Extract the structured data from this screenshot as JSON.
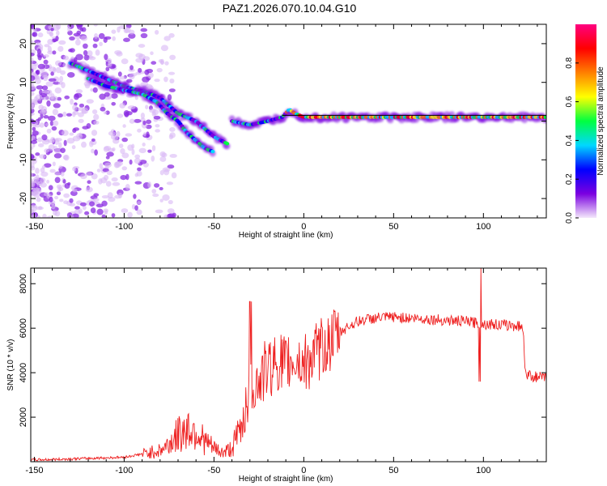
{
  "title": "PAZ1.2026.070.10.04.G10",
  "chart_data": [
    {
      "type": "heatmap",
      "xlabel": "Height of straight line (km)",
      "ylabel": "Frequency (Hz)",
      "xlim": [
        -152,
        135
      ],
      "ylim": [
        -25,
        25
      ],
      "xticks": [
        -150,
        -100,
        -50,
        0,
        50,
        100
      ],
      "yticks": [
        -20,
        -10,
        0,
        10,
        20
      ],
      "colorbar": {
        "label": "Normalized spectral amplitude",
        "ticks": [
          0.0,
          0.2,
          0.4,
          0.6,
          0.8
        ],
        "range": [
          0,
          1
        ],
        "colors": [
          "#f4e8fb",
          "#7a00e0",
          "#0000ff",
          "#00d8ff",
          "#00ff40",
          "#ffff00",
          "#ff8000",
          "#ff0000",
          "#ff0080"
        ]
      },
      "series": [
        {
          "x": [
            -130,
            -120,
            -110,
            -100,
            -92,
            -85,
            -80,
            -75,
            -70,
            -65,
            -60,
            -55,
            -50,
            -46,
            -42
          ],
          "y": [
            15,
            13,
            11,
            9,
            8,
            7,
            6,
            4,
            2,
            1,
            0,
            -2,
            -4,
            -5,
            -6
          ]
        },
        {
          "x": [
            -120,
            -110,
            -100,
            -90,
            -82,
            -76,
            -70,
            -65,
            -60,
            -55,
            -50
          ],
          "y": [
            11,
            9,
            8,
            7,
            5,
            2,
            0,
            -3,
            -5,
            -7,
            -8
          ]
        },
        {
          "x": [
            -40,
            -30,
            -20,
            -12,
            -8,
            -5,
            0,
            10,
            20,
            40,
            60,
            80,
            100,
            120,
            135
          ],
          "y": [
            0,
            -1,
            0,
            1,
            3,
            2,
            1,
            1,
            1,
            1,
            1,
            1,
            1,
            1,
            1
          ]
        }
      ],
      "baseline_y": 1.5
    },
    {
      "type": "line",
      "xlabel": "Height of straight line (km)",
      "ylabel": "SNR (10 * v/v)",
      "xlim": [
        -152,
        135
      ],
      "ylim": [
        0,
        8700
      ],
      "xticks": [
        -150,
        -100,
        -50,
        0,
        50,
        100
      ],
      "yticks": [
        2000,
        4000,
        6000,
        8000
      ],
      "color": "#ee2020",
      "x": [
        -152,
        -140,
        -120,
        -100,
        -90,
        -80,
        -75,
        -70,
        -65,
        -60,
        -55,
        -50,
        -45,
        -40,
        -35,
        -32,
        -30,
        -28,
        -25,
        -22,
        -20,
        -15,
        -10,
        -5,
        0,
        5,
        10,
        15,
        20,
        25,
        30,
        35,
        40,
        50,
        60,
        70,
        80,
        90,
        95,
        100,
        110,
        120,
        122,
        123,
        124,
        130,
        135
      ],
      "y": [
        80,
        100,
        150,
        200,
        350,
        500,
        800,
        1200,
        1500,
        1400,
        900,
        600,
        400,
        600,
        1500,
        2800,
        3300,
        3500,
        3600,
        4000,
        4200,
        4500,
        4400,
        4600,
        4400,
        4700,
        5100,
        5400,
        5800,
        6100,
        6300,
        6400,
        6450,
        6500,
        6450,
        6400,
        6350,
        6300,
        6250,
        6200,
        6150,
        6100,
        6050,
        4500,
        3900,
        3800,
        3750
      ]
    }
  ]
}
